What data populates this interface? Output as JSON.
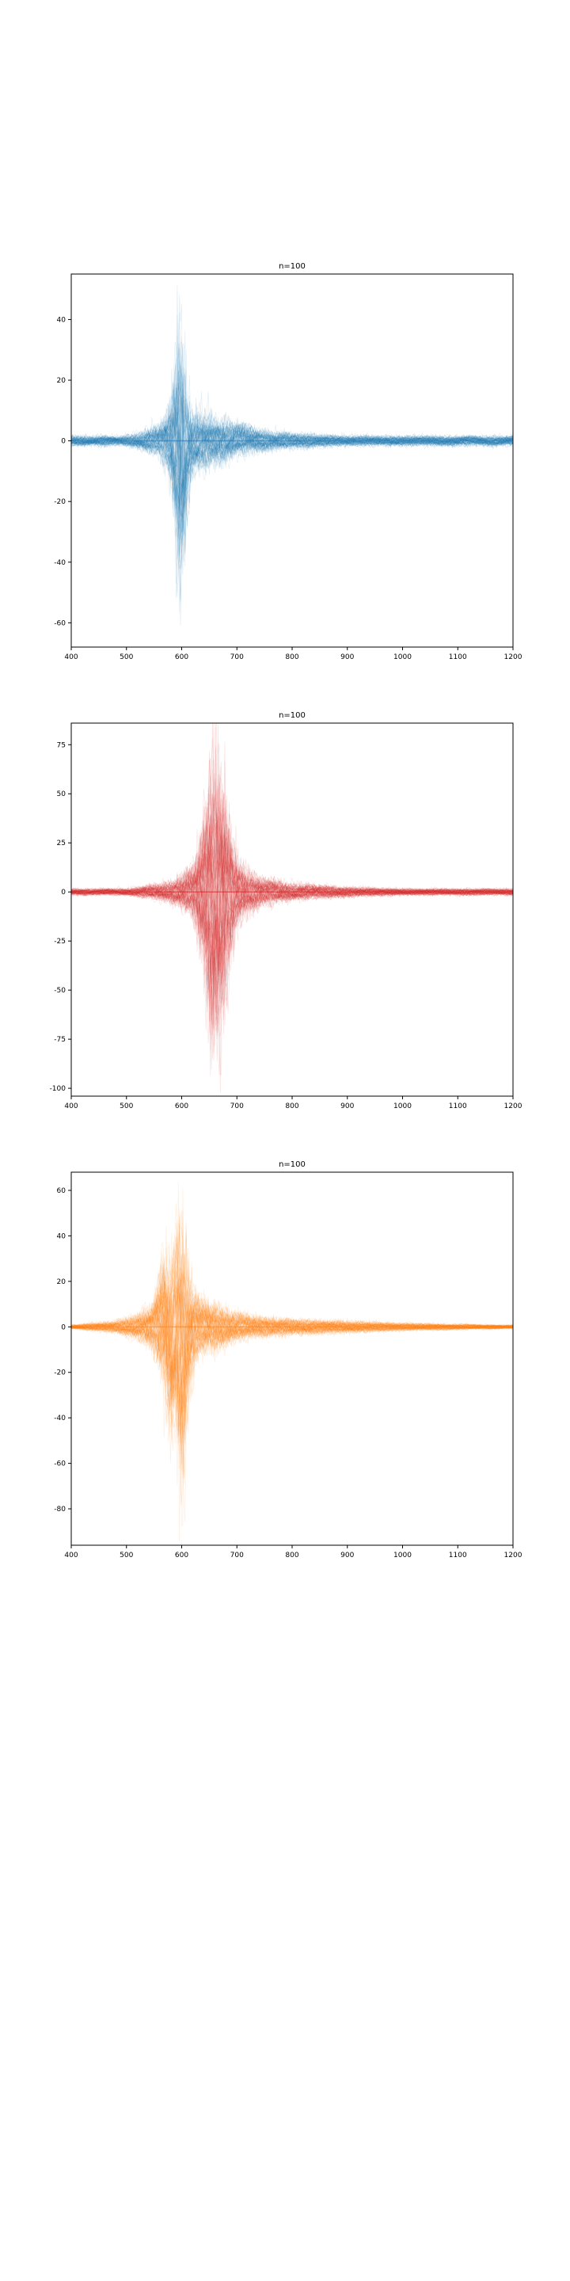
{
  "chart_data": [
    {
      "type": "line",
      "title": "n=100",
      "color": "#1f77b4",
      "xlim": [
        400,
        1200
      ],
      "ylim": [
        -68,
        55
      ],
      "xticks": [
        400,
        500,
        600,
        700,
        800,
        900,
        1000,
        1100,
        1200
      ],
      "yticks": [
        -60,
        -40,
        -20,
        0,
        20,
        40
      ],
      "n_traces": 100,
      "envelope": {
        "x": [
          400,
          500,
          560,
          580,
          590,
          598,
          605,
          615,
          630,
          650,
          680,
          700,
          750,
          800,
          900,
          1000,
          1200
        ],
        "upper": [
          2,
          2,
          6,
          15,
          38,
          50,
          25,
          12,
          10,
          10,
          8,
          7,
          4,
          3,
          2,
          2,
          2
        ],
        "lower": [
          -2,
          -2,
          -6,
          -15,
          -40,
          -62,
          -35,
          -15,
          -12,
          -10,
          -8,
          -6,
          -4,
          -3,
          -2,
          -2,
          -2
        ]
      }
    },
    {
      "type": "line",
      "title": "n=100",
      "color": "#d62728",
      "xlim": [
        400,
        1200
      ],
      "ylim": [
        -104,
        86
      ],
      "xticks": [
        400,
        500,
        600,
        700,
        800,
        900,
        1000,
        1100,
        1200
      ],
      "yticks": [
        -100,
        -75,
        -50,
        -25,
        0,
        25,
        50,
        75
      ],
      "n_traces": 100,
      "envelope": {
        "x": [
          400,
          500,
          580,
          620,
          640,
          650,
          660,
          670,
          680,
          690,
          700,
          720,
          750,
          800,
          900,
          1000,
          1200
        ],
        "upper": [
          2,
          2,
          6,
          15,
          45,
          75,
          70,
          75,
          55,
          30,
          20,
          12,
          8,
          5,
          3,
          2,
          2
        ],
        "lower": [
          -2,
          -2,
          -6,
          -15,
          -45,
          -80,
          -90,
          -85,
          -60,
          -35,
          -20,
          -12,
          -8,
          -5,
          -3,
          -2,
          -2
        ]
      }
    },
    {
      "type": "line",
      "title": "n=100",
      "color": "#ff7f0e",
      "xlim": [
        400,
        1200
      ],
      "ylim": [
        -96,
        68
      ],
      "xticks": [
        400,
        500,
        600,
        700,
        800,
        900,
        1000,
        1100,
        1200
      ],
      "yticks": [
        -80,
        -60,
        -40,
        -20,
        0,
        20,
        40,
        60
      ],
      "n_traces": 100,
      "envelope": {
        "x": [
          400,
          480,
          520,
          550,
          570,
          580,
          590,
          600,
          615,
          630,
          660,
          700,
          750,
          800,
          900,
          1000,
          1200
        ],
        "upper": [
          1,
          3,
          6,
          12,
          40,
          30,
          45,
          60,
          25,
          15,
          12,
          7,
          5,
          4,
          3,
          2,
          1
        ],
        "lower": [
          -1,
          -3,
          -6,
          -12,
          -35,
          -55,
          -40,
          -85,
          -30,
          -15,
          -12,
          -7,
          -5,
          -4,
          -3,
          -2,
          -1
        ]
      }
    }
  ]
}
